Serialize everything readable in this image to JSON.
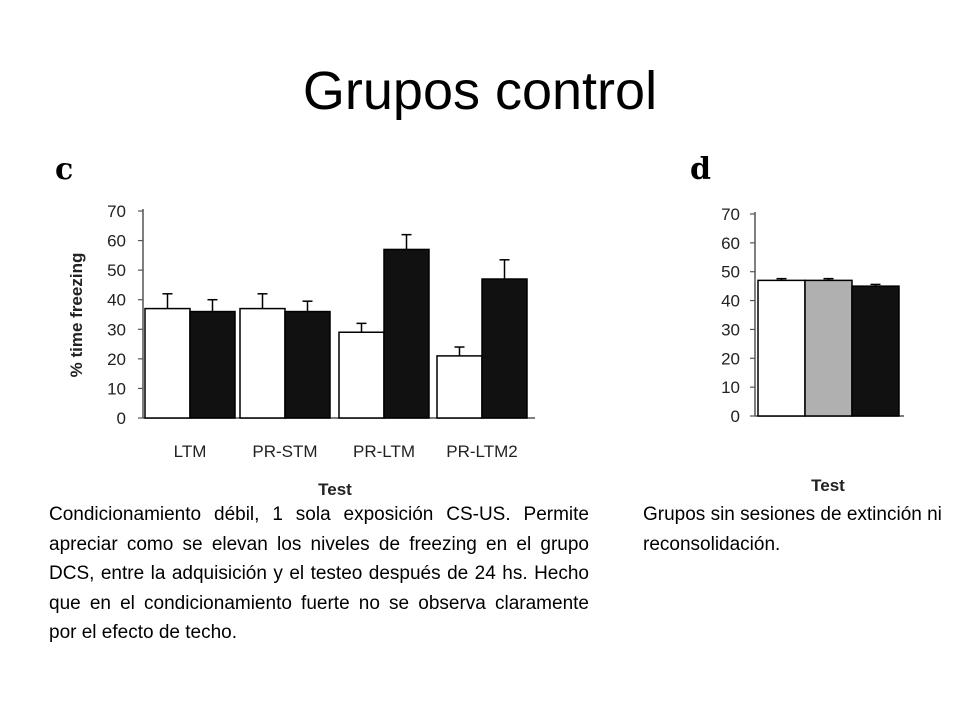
{
  "slide": {
    "title": "Grupos control",
    "caption_c": "Condicionamiento débil, 1 sola exposición CS-US. Permite apreciar como se elevan los niveles de freezing en el grupo DCS, entre la adquisición y el testeo después de 24 hs. Hecho que en el condicionamiento fuerte no se observa claramente por el efecto de techo.",
    "caption_d": "Grupos sin sesiones de extinción ni reconsolidación."
  },
  "chart_data": [
    {
      "panel": "c",
      "type": "bar",
      "xlabel": "Test",
      "ylabel": "% time freezing",
      "ylim": [
        0,
        70
      ],
      "yticks": [
        0,
        10,
        20,
        30,
        40,
        50,
        60,
        70
      ],
      "categories": [
        "LTM",
        "PR-STM",
        "PR-LTM",
        "PR-LTM2"
      ],
      "series": [
        {
          "color": "#ffffff",
          "values": [
            37,
            37,
            29,
            21
          ],
          "errors": [
            5,
            5,
            3,
            3
          ]
        },
        {
          "color": "#111111",
          "values": [
            36,
            36,
            57,
            47
          ],
          "errors": [
            4,
            3.5,
            5,
            6.5
          ]
        }
      ],
      "grid": false,
      "legend": "none"
    },
    {
      "panel": "d",
      "type": "bar",
      "xlabel": "Test",
      "ylabel": "",
      "ylim": [
        0,
        70
      ],
      "yticks": [
        0,
        10,
        20,
        30,
        40,
        50,
        60,
        70
      ],
      "categories": [
        ""
      ],
      "series": [
        {
          "color": "#ffffff",
          "values": [
            47
          ],
          "errors": [
            0.6
          ]
        },
        {
          "color": "#b0b0b0",
          "values": [
            47
          ],
          "errors": [
            0.6
          ]
        },
        {
          "color": "#111111",
          "values": [
            45
          ],
          "errors": [
            0.6
          ]
        }
      ],
      "grid": false,
      "legend": "none"
    }
  ]
}
